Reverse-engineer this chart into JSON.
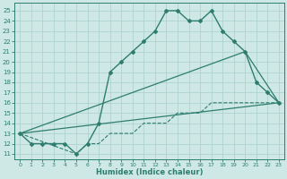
{
  "xlabel": "Humidex (Indice chaleur)",
  "bg_color": "#cde8e5",
  "line_color": "#2e7d6e",
  "grid_color": "#aacfcc",
  "xlim": [
    -0.5,
    23.5
  ],
  "ylim": [
    10.5,
    25.8
  ],
  "yticks": [
    11,
    12,
    13,
    14,
    15,
    16,
    17,
    18,
    19,
    20,
    21,
    22,
    23,
    24,
    25
  ],
  "xticks": [
    0,
    1,
    2,
    3,
    4,
    5,
    6,
    7,
    8,
    9,
    10,
    11,
    12,
    13,
    14,
    15,
    16,
    17,
    18,
    19,
    20,
    21,
    22,
    23
  ],
  "series1": [
    [
      0,
      13
    ],
    [
      1,
      12
    ],
    [
      2,
      12
    ],
    [
      3,
      12
    ],
    [
      4,
      12
    ],
    [
      5,
      11
    ],
    [
      6,
      12
    ],
    [
      7,
      14
    ],
    [
      8,
      19
    ],
    [
      9,
      20
    ],
    [
      10,
      21
    ],
    [
      11,
      22
    ],
    [
      12,
      23
    ],
    [
      13,
      25
    ],
    [
      14,
      25
    ],
    [
      15,
      24
    ],
    [
      16,
      24
    ],
    [
      17,
      25
    ],
    [
      18,
      23
    ],
    [
      19,
      22
    ],
    [
      20,
      21
    ],
    [
      21,
      18
    ],
    [
      22,
      17
    ],
    [
      23,
      16
    ]
  ],
  "series2": [
    [
      0,
      13
    ],
    [
      20,
      21
    ],
    [
      23,
      16
    ]
  ],
  "series3": [
    [
      0,
      13
    ],
    [
      23,
      16
    ]
  ],
  "series4": [
    [
      0,
      13
    ],
    [
      5,
      11
    ],
    [
      6,
      12
    ],
    [
      7,
      12
    ],
    [
      8,
      13
    ],
    [
      9,
      13
    ],
    [
      10,
      13
    ],
    [
      11,
      14
    ],
    [
      12,
      14
    ],
    [
      13,
      14
    ],
    [
      14,
      15
    ],
    [
      15,
      15
    ],
    [
      16,
      15
    ],
    [
      17,
      16
    ],
    [
      18,
      16
    ],
    [
      19,
      16
    ],
    [
      20,
      16
    ],
    [
      21,
      16
    ],
    [
      22,
      16
    ],
    [
      23,
      16
    ]
  ]
}
